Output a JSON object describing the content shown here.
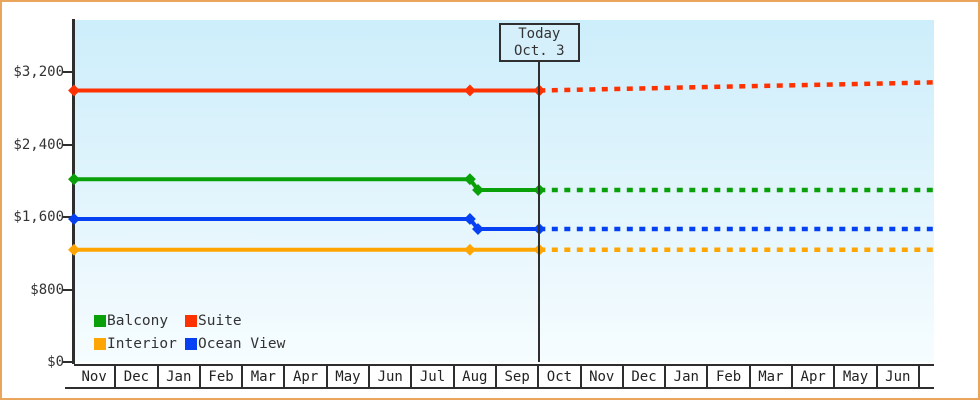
{
  "window": {
    "frame_border_color": "#eaa55c",
    "plot_bg_top_color": "#cdeefb",
    "plot_bg_bottom_color": "#f6fdff",
    "axis_color": "#2e2e2e"
  },
  "chart_data": {
    "type": "line",
    "title": "",
    "xlabel": "",
    "ylabel": "",
    "grid": false,
    "legend_position": "bottom-left-inside",
    "x_months": [
      "Nov",
      "Dec",
      "Jan",
      "Feb",
      "Mar",
      "Apr",
      "May",
      "Jun",
      "Jul",
      "Aug",
      "Sep",
      "Oct",
      "Nov",
      "Dec",
      "Jan",
      "Feb",
      "Mar",
      "Apr",
      "May",
      "Jun"
    ],
    "x_range_months": 20.33,
    "ylim": [
      0,
      3780
    ],
    "y_ticks": [
      {
        "value": 0,
        "label": "$0"
      },
      {
        "value": 800,
        "label": "$800"
      },
      {
        "value": 1600,
        "label": "$1,600"
      },
      {
        "value": 2400,
        "label": "$2,400"
      },
      {
        "value": 3200,
        "label": "$3,200"
      }
    ],
    "today": {
      "label": "Today",
      "date": "Oct. 3",
      "month_position": 11
    },
    "series": [
      {
        "name": "Balcony",
        "color": "#0aa00a",
        "solid": [
          [
            0,
            2020
          ],
          [
            9.36,
            2020
          ],
          [
            9.55,
            1900
          ],
          [
            11,
            1900
          ]
        ],
        "projected_dashed": [
          [
            11,
            1900
          ],
          [
            20.33,
            1900
          ]
        ],
        "markers": [
          [
            0,
            2020
          ],
          [
            9.36,
            2020
          ],
          [
            9.55,
            1900
          ],
          [
            11,
            1900
          ]
        ]
      },
      {
        "name": "Suite",
        "color": "#fe3101",
        "solid": [
          [
            0,
            3000
          ],
          [
            9.36,
            3000
          ],
          [
            11,
            3000
          ]
        ],
        "projected_dashed": [
          [
            11,
            3000
          ],
          [
            20.33,
            3090
          ]
        ],
        "markers": [
          [
            0,
            3000
          ],
          [
            9.36,
            3000
          ],
          [
            11,
            3000
          ]
        ]
      },
      {
        "name": "Interior",
        "color": "#ffa502",
        "solid": [
          [
            0,
            1240
          ],
          [
            9.36,
            1240
          ],
          [
            11,
            1240
          ]
        ],
        "projected_dashed": [
          [
            11,
            1240
          ],
          [
            20.33,
            1240
          ]
        ],
        "markers": [
          [
            0,
            1240
          ],
          [
            9.36,
            1240
          ],
          [
            11,
            1240
          ]
        ]
      },
      {
        "name": "Ocean View",
        "color": "#0540f2",
        "solid": [
          [
            0,
            1580
          ],
          [
            9.36,
            1580
          ],
          [
            9.55,
            1470
          ],
          [
            11,
            1470
          ]
        ],
        "projected_dashed": [
          [
            11,
            1470
          ],
          [
            20.33,
            1470
          ]
        ],
        "markers": [
          [
            0,
            1580
          ],
          [
            9.36,
            1580
          ],
          [
            9.55,
            1470
          ],
          [
            11,
            1470
          ]
        ]
      }
    ]
  }
}
